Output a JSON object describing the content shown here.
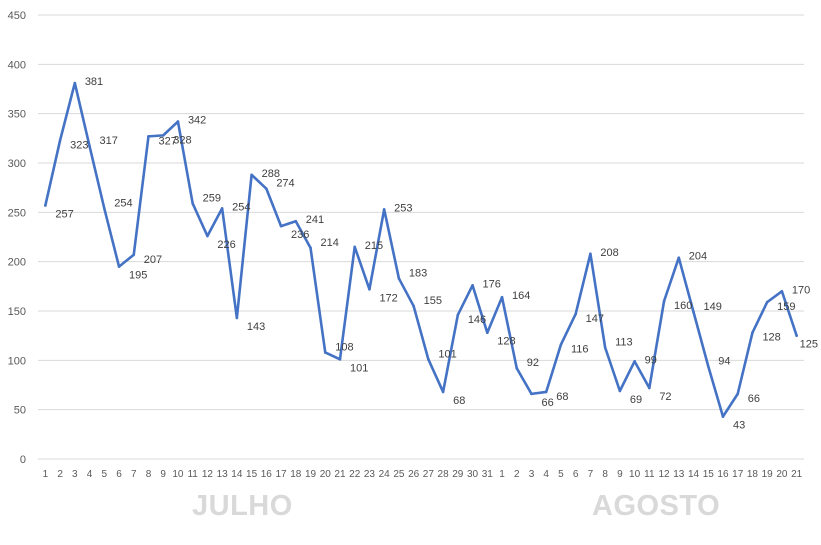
{
  "chart_data": {
    "type": "line",
    "ylim": [
      0,
      450
    ],
    "y_ticks": [
      0,
      50,
      100,
      150,
      200,
      250,
      300,
      350,
      400,
      450
    ],
    "grid": true,
    "line_color": "#4472C4",
    "categories": [
      "1",
      "2",
      "3",
      "4",
      "5",
      "6",
      "7",
      "8",
      "9",
      "10",
      "11",
      "12",
      "13",
      "14",
      "15",
      "16",
      "17",
      "18",
      "19",
      "20",
      "21",
      "22",
      "23",
      "24",
      "25",
      "26",
      "27",
      "28",
      "29",
      "30",
      "31",
      "1",
      "2",
      "3",
      "4",
      "5",
      "6",
      "7",
      "8",
      "9",
      "10",
      "11",
      "12",
      "13",
      "14",
      "15",
      "16",
      "17",
      "18",
      "19",
      "20",
      "21"
    ],
    "values": [
      257,
      323,
      381,
      317,
      254,
      195,
      207,
      327,
      328,
      342,
      259,
      226,
      254,
      143,
      288,
      274,
      236,
      241,
      214,
      108,
      101,
      215,
      172,
      253,
      183,
      155,
      101,
      68,
      146,
      176,
      128,
      164,
      92,
      66,
      68,
      116,
      147,
      208,
      113,
      69,
      99,
      72,
      160,
      204,
      149,
      94,
      43,
      66,
      128,
      159,
      170,
      125
    ],
    "month_groups": [
      {
        "label": "JULHO",
        "color": "#d9d9d9"
      },
      {
        "label": "AGOSTO",
        "color": "#d9d9d9"
      }
    ]
  }
}
